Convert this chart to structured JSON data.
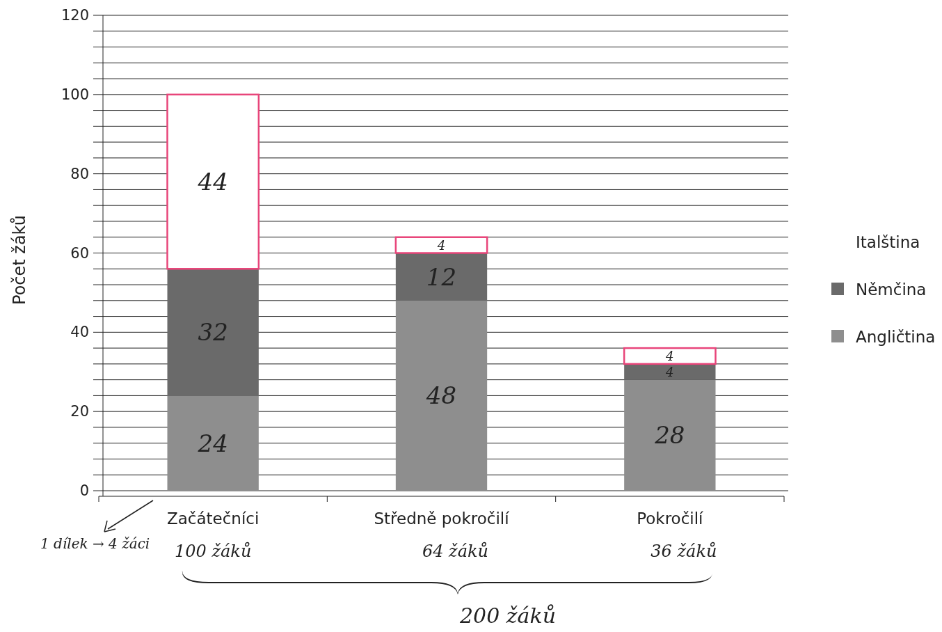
{
  "chart_data": {
    "type": "bar",
    "stacked": true,
    "ylabel": "Počet žáků",
    "categories": [
      "Začátečníci",
      "Středně pokročilí",
      "Pokročilí"
    ],
    "series": [
      {
        "name": "Angličtina",
        "color": "#8e8e8e",
        "values": [
          24,
          48,
          28
        ]
      },
      {
        "name": "Němčina",
        "color": "#6a6a6a",
        "values": [
          32,
          12,
          4
        ]
      },
      {
        "name": "Italština",
        "color": "#ffffff",
        "values": [
          44,
          4,
          4
        ]
      }
    ],
    "ylim": [
      0,
      120
    ],
    "yticks": [
      0,
      {
        "value": 4,
        "label": null
      },
      {
        "value": 8,
        "label": null
      },
      {
        "value": 12,
        "label": null
      },
      {
        "value": 16,
        "label": null
      },
      20,
      {
        "value": 24,
        "label": null
      },
      {
        "value": 28,
        "label": null
      },
      {
        "value": 32,
        "label": null
      },
      {
        "value": 36,
        "label": null
      },
      40,
      {
        "value": 44,
        "label": null
      },
      {
        "value": 48,
        "label": null
      },
      {
        "value": 52,
        "label": null
      },
      {
        "value": 56,
        "label": null
      },
      60,
      {
        "value": 64,
        "label": null
      },
      {
        "value": 68,
        "label": null
      },
      {
        "value": 72,
        "label": null
      },
      {
        "value": 76,
        "label": null
      },
      80,
      {
        "value": 84,
        "label": null
      },
      {
        "value": 88,
        "label": null
      },
      {
        "value": 92,
        "label": null
      },
      {
        "value": 96,
        "label": null
      },
      100,
      {
        "value": 104,
        "label": null
      },
      {
        "value": 108,
        "label": null
      },
      {
        "value": 112,
        "label": null
      },
      {
        "value": 116,
        "label": null
      },
      120
    ],
    "grid": true,
    "legend": "right",
    "data_labels": true,
    "annotations": [
      "1 dílek → 4 žáci",
      "100 žáků",
      "64 žáků",
      "36 žáků",
      "200 žáků"
    ]
  }
}
